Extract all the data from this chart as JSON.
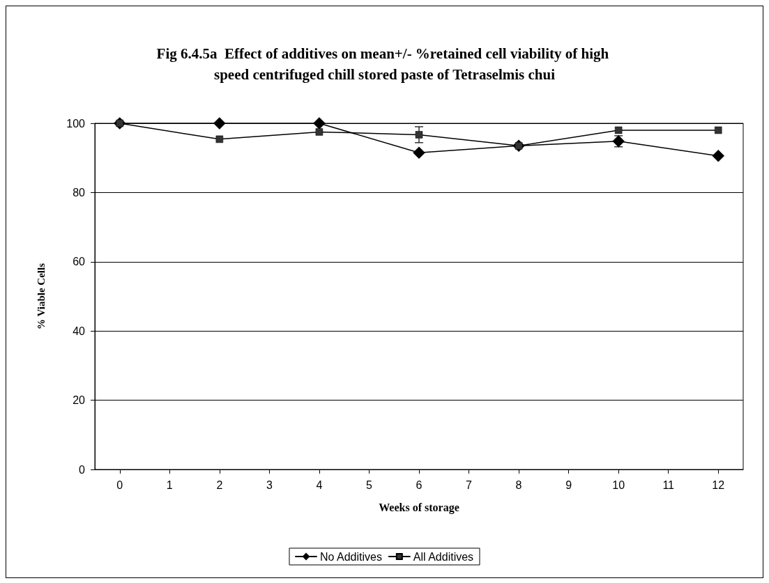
{
  "chart_data": {
    "type": "line",
    "title": "Fig 6.4.5a  Effect of additives on mean+/- %retained cell viability of high speed centrifuged chill stored paste of Tetraselmis chui",
    "xlabel": "Weeks of storage",
    "ylabel": "% Viable Cells",
    "x": [
      0,
      2,
      4,
      6,
      8,
      10,
      12
    ],
    "series": [
      {
        "name": "No Additives",
        "color": "#000000",
        "marker": "diamond",
        "values": [
          100,
          100,
          100,
          91.5,
          93.5,
          94.8,
          90.6
        ],
        "errors": [
          null,
          null,
          null,
          null,
          null,
          1.6,
          null
        ]
      },
      {
        "name": "All Additives",
        "color": "#333333",
        "marker": "square",
        "values": [
          100,
          95.4,
          97.5,
          96.7,
          93.5,
          98,
          98
        ],
        "errors": [
          null,
          null,
          null,
          2.3,
          null,
          null,
          null
        ]
      }
    ],
    "xlim": [
      -0.5,
      12.5
    ],
    "xticks": [
      0,
      1,
      2,
      3,
      4,
      5,
      6,
      7,
      8,
      9,
      10,
      11,
      12
    ],
    "ylim": [
      0,
      100
    ],
    "yticks": [
      0,
      20,
      40,
      60,
      80,
      100
    ],
    "grid": "y",
    "legend": "bottom",
    "line_style": "solid"
  }
}
